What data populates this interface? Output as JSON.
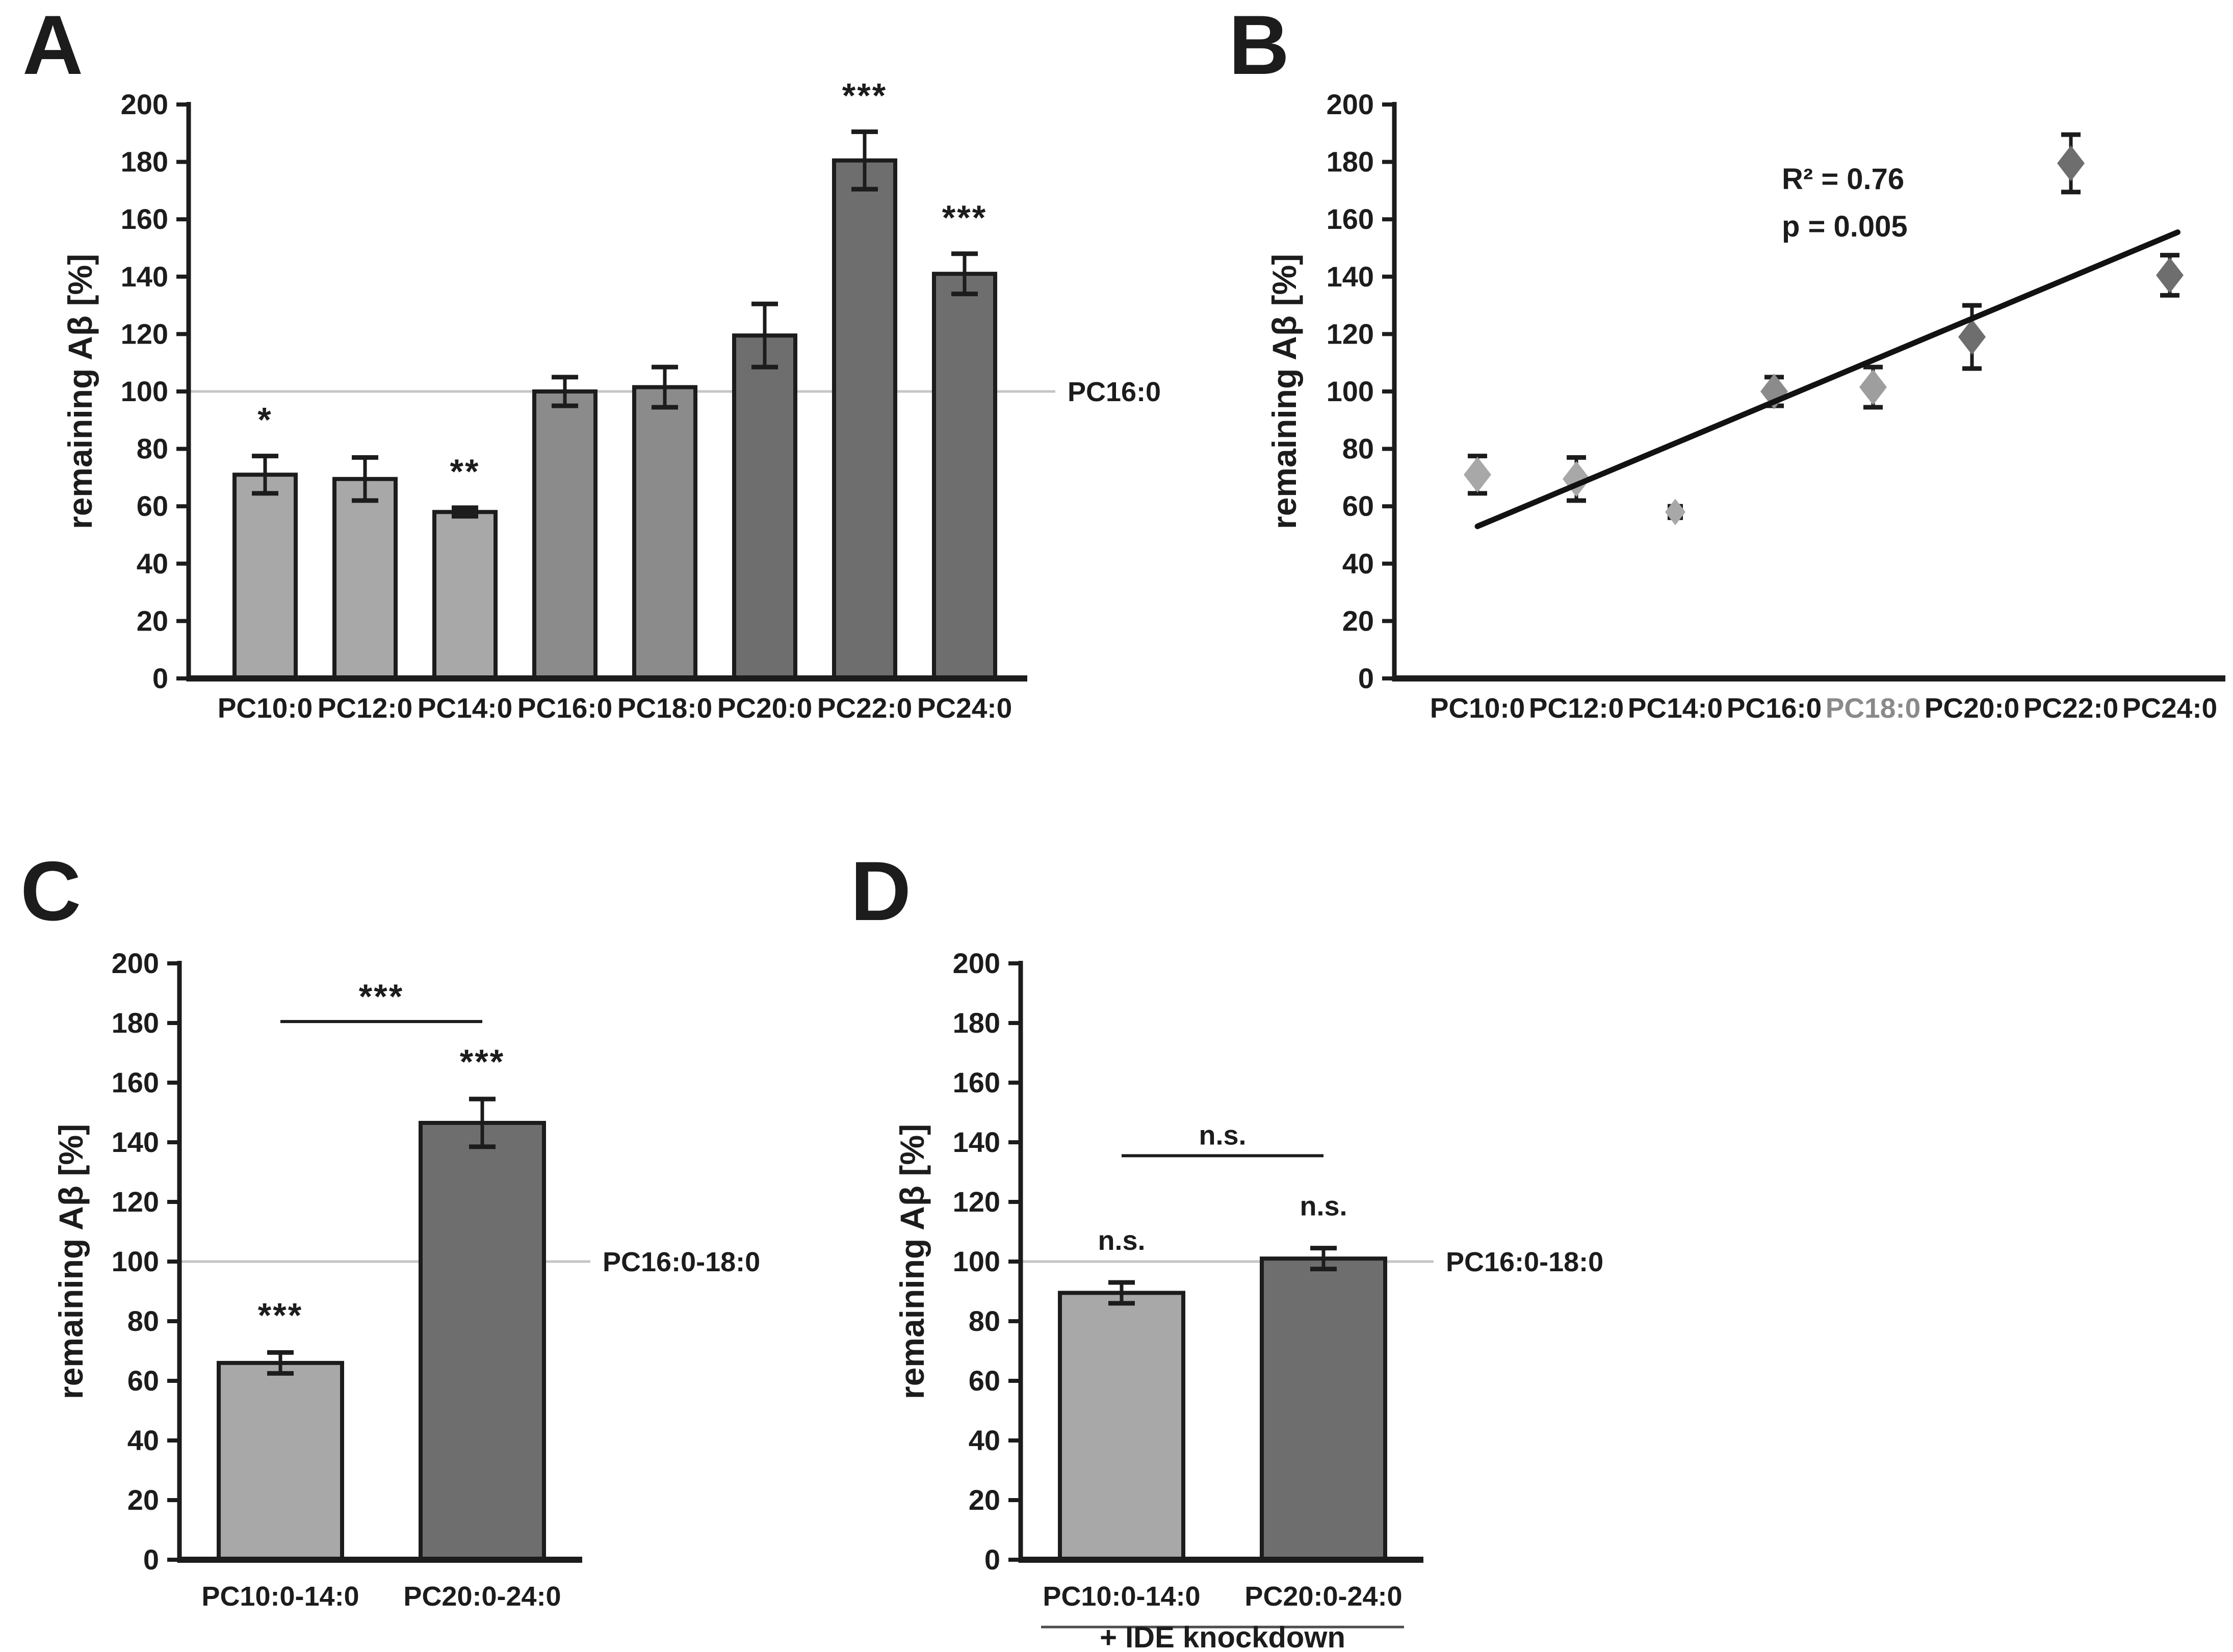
{
  "styles": {
    "background": "#ffffff",
    "text_color": "#1c1c1c",
    "axis_color": "#1c1c1c",
    "bar_stroke_color": "#1c1c1c",
    "error_bar_color": "#1c1c1c",
    "reference_line_color": "#c6c6c6",
    "trendline_color": "#121212",
    "muted_label_color": "#8a8a8a",
    "group_line_color": "#4d4d4d",
    "shade_colors": {
      "light": "#a8a8a8",
      "medium": "#8b8b8b",
      "dark": "#6e6e6e",
      "ref": "#9e9e9e"
    }
  },
  "chart_data": [
    {
      "panel": "A",
      "type": "bar",
      "title": "",
      "xlabel": "",
      "ylabel": "remaining Aβ [%]",
      "ylim": [
        0,
        200
      ],
      "ytick_step": 20,
      "grid": "off",
      "legend": "none",
      "categories": [
        "PC10:0",
        "PC12:0",
        "PC14:0",
        "PC16:0",
        "PC18:0",
        "PC20:0",
        "PC22:0",
        "PC24:0"
      ],
      "values": [
        71,
        69.5,
        58,
        100,
        101.5,
        119.5,
        180.5,
        141
      ],
      "errors": [
        6.5,
        7.5,
        1.5,
        5,
        7,
        11,
        10,
        7
      ],
      "significance": [
        "*",
        "",
        "**",
        "",
        "",
        "",
        "***",
        "***"
      ],
      "bar_shades": [
        "light",
        "light",
        "light",
        "medium",
        "medium",
        "dark",
        "dark",
        "dark"
      ],
      "reference_line": {
        "value": 100,
        "label": "PC16:0"
      }
    },
    {
      "panel": "B",
      "type": "scatter",
      "title": "",
      "xlabel": "",
      "ylabel": "remaining Aβ [%]",
      "ylim": [
        0,
        200
      ],
      "ytick_step": 20,
      "grid": "off",
      "legend": "none",
      "categories": [
        "PC10:0",
        "PC12:0",
        "PC14:0",
        "PC16:0",
        "PC18:0",
        "PC20:0",
        "PC22:0",
        "PC24:0"
      ],
      "values": [
        71,
        69.5,
        58,
        100,
        101.5,
        119,
        179.5,
        140.5
      ],
      "errors": [
        6.5,
        7.5,
        2,
        5,
        7,
        11,
        10,
        7
      ],
      "marker_shades": [
        "light",
        "light",
        "light",
        "medium",
        "ref",
        "dark",
        "dark",
        "dark"
      ],
      "marker_sizes": [
        "normal",
        "normal",
        "small",
        "normal",
        "normal",
        "normal",
        "normal",
        "normal"
      ],
      "muted_category_index": 4,
      "annotations": [
        "R² = 0.76",
        "p = 0.005"
      ],
      "annotation_values": [
        170.5,
        154
      ],
      "trendline": {
        "from_index": 0,
        "from_value": 53,
        "to_index": 7.08,
        "to_value": 155.5
      }
    },
    {
      "panel": "C",
      "type": "bar",
      "title": "",
      "xlabel": "",
      "ylabel": "remaining Aβ [%]",
      "ylim": [
        0,
        200
      ],
      "ytick_step": 20,
      "grid": "off",
      "legend": "none",
      "categories": [
        "PC10:0-14:0",
        "PC20:0-24:0"
      ],
      "values": [
        66,
        146.5
      ],
      "errors": [
        3.5,
        8
      ],
      "significance": [
        "***",
        "***"
      ],
      "bar_shades": [
        "light",
        "dark"
      ],
      "reference_line": {
        "value": 100,
        "label": "PC16:0-18:0"
      },
      "comparison": {
        "from_index": 0,
        "to_index": 1,
        "value": 180.5,
        "label": "***"
      }
    },
    {
      "panel": "D",
      "type": "bar",
      "title": "",
      "xlabel": "",
      "ylabel": "remaining Aβ [%]",
      "ylim": [
        0,
        200
      ],
      "ytick_step": 20,
      "grid": "off",
      "legend": "none",
      "categories": [
        "PC10:0-14:0",
        "PC20:0-24:0"
      ],
      "values": [
        89.5,
        101
      ],
      "errors": [
        3.5,
        3.5
      ],
      "significance": [
        "n.s.",
        "n.s."
      ],
      "bar_shades": [
        "light",
        "dark"
      ],
      "reference_line": {
        "value": 100,
        "label": "PC16:0-18:0"
      },
      "comparison": {
        "from_index": 0,
        "to_index": 1,
        "value": 135.5,
        "label": "n.s."
      },
      "group_annotation": "+ IDE knockdown"
    }
  ]
}
